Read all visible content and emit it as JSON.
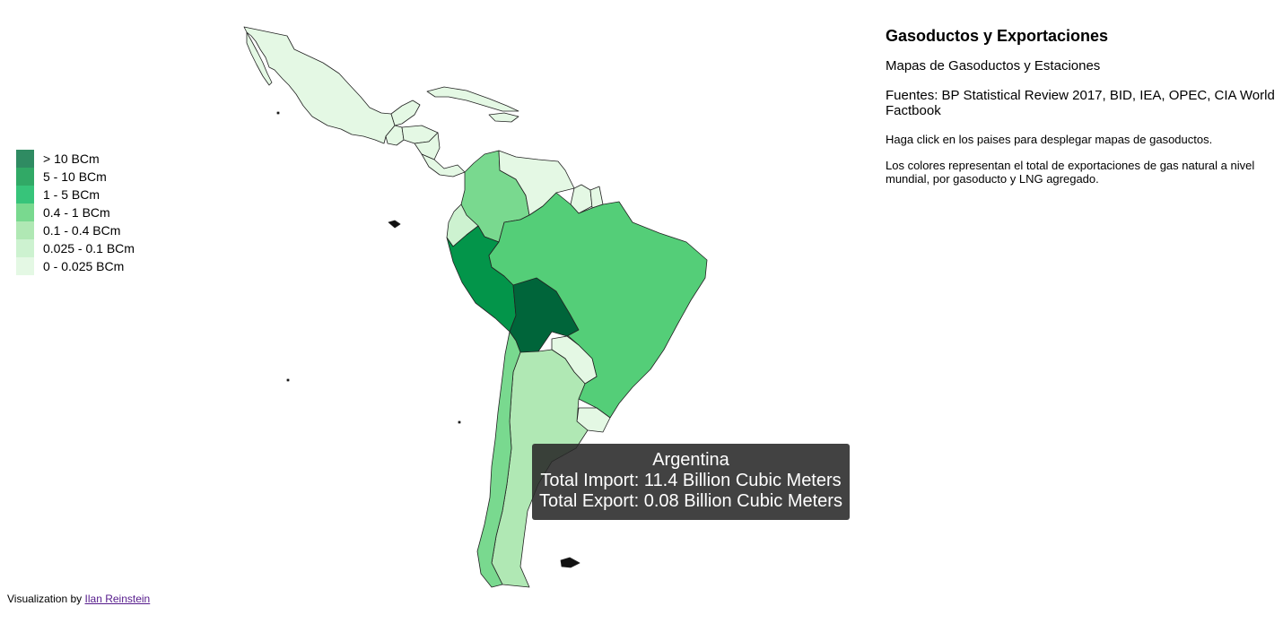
{
  "colors": {
    "tier1": "#2f8b62",
    "tier2": "#31a966",
    "tier3": "#37c47a",
    "tier4": "#79d98f",
    "tier5": "#b0e8b4",
    "tier6": "#cdf2d0",
    "tier7": "#e4f8e4",
    "brazil": "#54ce78",
    "peru": "#03954a",
    "bolivia": "#00653a"
  },
  "legend": [
    {
      "label": "> 10 BCm",
      "color": "#2f8b62"
    },
    {
      "label": "5 - 10 BCm",
      "color": "#31a966"
    },
    {
      "label": "1 - 5 BCm",
      "color": "#37c47a"
    },
    {
      "label": "0.4 - 1 BCm",
      "color": "#79d98f"
    },
    {
      "label": "0.1 - 0.4 BCm",
      "color": "#b0e8b4"
    },
    {
      "label": "0.025 - 0.1 BCm",
      "color": "#cdf2d0"
    },
    {
      "label": "0 - 0.025 BCm",
      "color": "#e4f8e4"
    }
  ],
  "info": {
    "title": "Gasoductos y Exportaciones",
    "subtitle": "Mapas de Gasoductos y Estaciones",
    "sources": "Fuentes: BP Statistical Review 2017, BID, IEA, OPEC, CIA World Factbook",
    "instruction": "Haga click en los paises para desplegar mapas de gasoductos.",
    "description": "Los colores representan el total de exportaciones de gas natural a nivel mundial, por gasoducto y LNG agregado."
  },
  "tooltip": {
    "country": "Argentina",
    "import_line": "Total Import: 11.4 Billion Cubic Meters",
    "export_line": "Total Export: 0.08 Billion Cubic Meters"
  },
  "credit": {
    "prefix": "Visualization by",
    "author": "Ilan Reinstein"
  }
}
